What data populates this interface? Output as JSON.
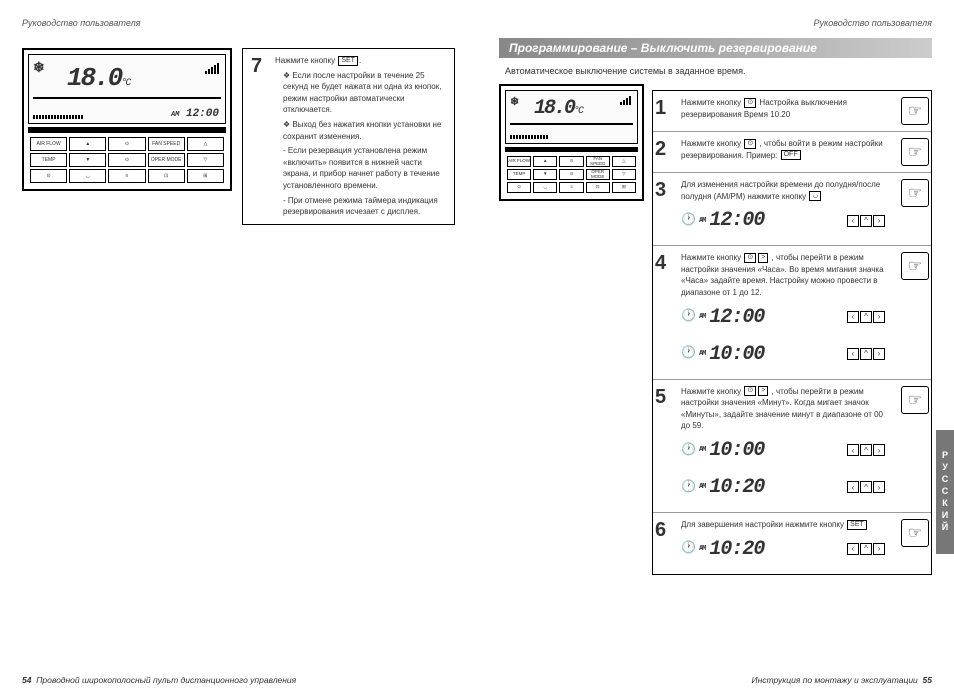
{
  "header_left": "Руководство пользователя",
  "header_right": "Руководство пользователя",
  "section_title": "Программирование – Выключить резервирование",
  "section_sub": "Автоматическое выключение системы в заданное время.",
  "lcd": {
    "temp": "18.0",
    "temp_unit": "°C",
    "clock": "12:00",
    "snow_icon": "❄"
  },
  "left_step": {
    "num": "7",
    "line1": "Нажмите кнопку",
    "btn_label": "SET",
    "b1": "Если после настройки в течение 25 секунд не будет нажата ни одна из кнопок, режим настройки автоматически отключается.",
    "b2": "Выход без нажатия кнопки установки не сохранит изменения.",
    "s1": "- Если резервация установлена режим «включить» появится в нижней части экрана, и прибор начнет работу в течение установленного времени.",
    "s2": "- При отмене режима таймера индикация резервирования исчезает с дисплея."
  },
  "right_steps": [
    {
      "num": "1",
      "text": "Нажмите кнопку",
      "btn": "⊙",
      "text2": "Настройка выключения резервирования Время 10.20"
    },
    {
      "num": "2",
      "text": "Нажмите кнопку",
      "btn": "⊙",
      "text2": ", чтобы войти в режим настройки резервирования. Пример:",
      "example": "OFF"
    },
    {
      "num": "3",
      "text": "Для изменения настройки времени до полудня/после полудня (AM/PM) нажмите кнопку",
      "btn": "◡",
      "times": [
        {
          "ampm": "AM",
          "t": "12:00"
        }
      ]
    },
    {
      "num": "4",
      "text": "Нажмите кнопку",
      "btn": "⊙ >",
      "text2": ", чтобы перейти в режим настройки значения «Часа». Во время мигания значка «Часа» задайте время. Настройку можно провести в диапазоне от 1 до 12.",
      "times": [
        {
          "ampm": "AM",
          "t": "12:00"
        },
        {
          "ampm": "AM",
          "t": "10:00"
        }
      ]
    },
    {
      "num": "5",
      "text": "Нажмите кнопку",
      "btn": "⊙ >",
      "text2": ", чтобы перейти в режим настройки значения «Минут». Когда мигает значок «Минуты», задайте значение минут в диапазоне от 00 до 59.",
      "times": [
        {
          "ampm": "AM",
          "t": "10:00"
        },
        {
          "ampm": "AM",
          "t": "10:20"
        }
      ]
    },
    {
      "num": "6",
      "text": "Для завершения настройки нажмите кнопку",
      "btn": "SET",
      "times": [
        {
          "ampm": "AM",
          "t": "10:20"
        }
      ]
    }
  ],
  "footer_left_num": "54",
  "footer_left_text": "Проводной широкополосный пульт дистанционного управления",
  "footer_right_text": "Инструкция по монтажу и эксплуатации",
  "footer_right_num": "55",
  "side_tab": "РУССКИЙ",
  "remote_buttons": [
    "AIR FLOW",
    "▲",
    "⊙",
    "FAN SPEED",
    "△",
    "TEMP",
    "▼",
    "⊙",
    "OPER MODE",
    "▽",
    "⊙",
    "◡",
    "≡",
    "⊡",
    "⊞"
  ],
  "colors": {
    "title_grad_from": "#888",
    "title_grad_to": "#ccc",
    "border": "#000",
    "text": "#333"
  }
}
